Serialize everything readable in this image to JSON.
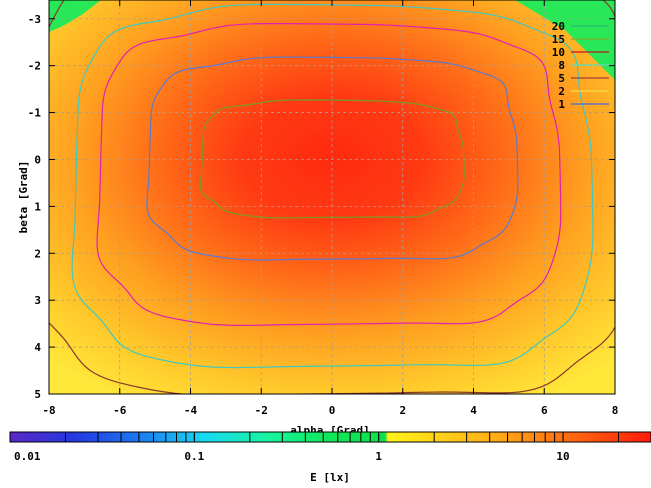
{
  "chart_data": {
    "type": "heatmap",
    "title": "",
    "xlabel": "alpha [Grad]",
    "ylabel": "beta [Grad]",
    "xlim": [
      -8,
      8
    ],
    "ylim": [
      -3.4,
      5
    ],
    "y_axis_inverted": true,
    "x_ticks": [
      "-8",
      "-6",
      "-4",
      "-2",
      "0",
      "2",
      "4",
      "6",
      "8"
    ],
    "y_ticks": [
      "-3",
      "-2",
      "-1",
      "0",
      "1",
      "2",
      "3",
      "4",
      "5"
    ],
    "grid": true,
    "legend_placement": "top-right",
    "contour_levels": [
      {
        "label": "20",
        "value": 20,
        "color": "#2bb673"
      },
      {
        "label": "15",
        "value": 15,
        "color": "#7fae2a"
      },
      {
        "label": "10",
        "value": 10,
        "color": "#c0141e"
      },
      {
        "label": "8",
        "value": 8,
        "color": "#5ee0b0"
      },
      {
        "label": "5",
        "value": 5,
        "color": "#a03c3c"
      },
      {
        "label": "2",
        "value": 2,
        "color": "#f0e040"
      },
      {
        "label": "1",
        "value": 1,
        "color": "#4a6ad8"
      }
    ],
    "visible_contours": [
      {
        "value": 20,
        "color": "#7a9a28",
        "half_width": 3.7,
        "half_height": 1.25,
        "center": [
          0.0,
          0.0
        ]
      },
      {
        "value": 15,
        "color": "#5a7ad0",
        "half_width": 5.2,
        "half_height": 2.15,
        "center": [
          0.0,
          0.0
        ]
      },
      {
        "value": 10,
        "color": "#e020b0",
        "half_width": 6.5,
        "half_height": 3.2,
        "center": [
          -0.1,
          0.35
        ]
      },
      {
        "value": 8,
        "color": "#40c8c0",
        "half_width": 7.3,
        "half_height": 3.85,
        "center": [
          0.0,
          0.6
        ]
      },
      {
        "value": 5,
        "color": "#8a3a2a",
        "half_width": 8.5,
        "half_height": 4.7,
        "center": [
          0.0,
          0.35
        ]
      }
    ],
    "colorbar": {
      "label": "E [lx]",
      "scale": "log",
      "range": [
        0.01,
        30
      ],
      "tick_labels": [
        "0.01",
        "0.1",
        "1",
        "10"
      ],
      "tick_values": [
        0.01,
        0.1,
        1,
        10
      ]
    }
  }
}
